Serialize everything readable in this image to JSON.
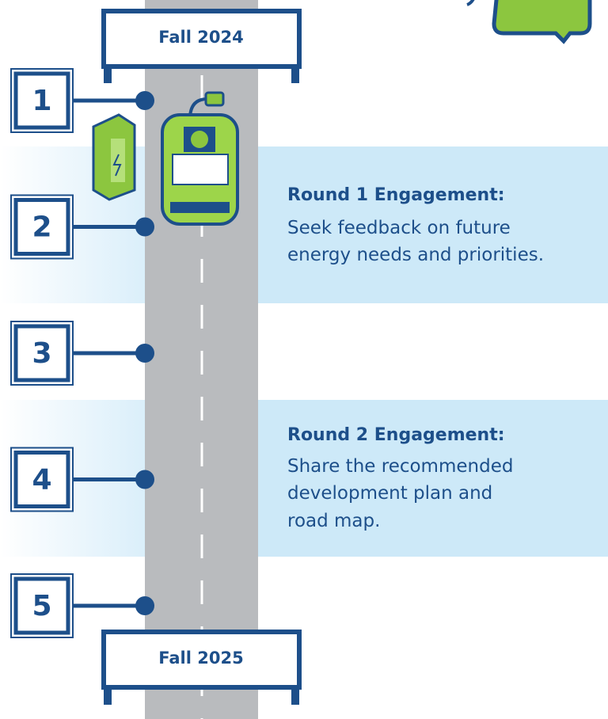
{
  "banners": {
    "start": "Fall 2024",
    "end": "Fall 2025"
  },
  "steps": [
    "1",
    "2",
    "3",
    "4",
    "5"
  ],
  "rounds": [
    {
      "title": "Round 1 Engagement:",
      "lines": [
        "Seek feedback on future",
        "energy needs and priorities."
      ]
    },
    {
      "title": "Round 2 Engagement:",
      "lines": [
        "Share the recommended",
        "development plan and",
        "road map."
      ]
    }
  ]
}
